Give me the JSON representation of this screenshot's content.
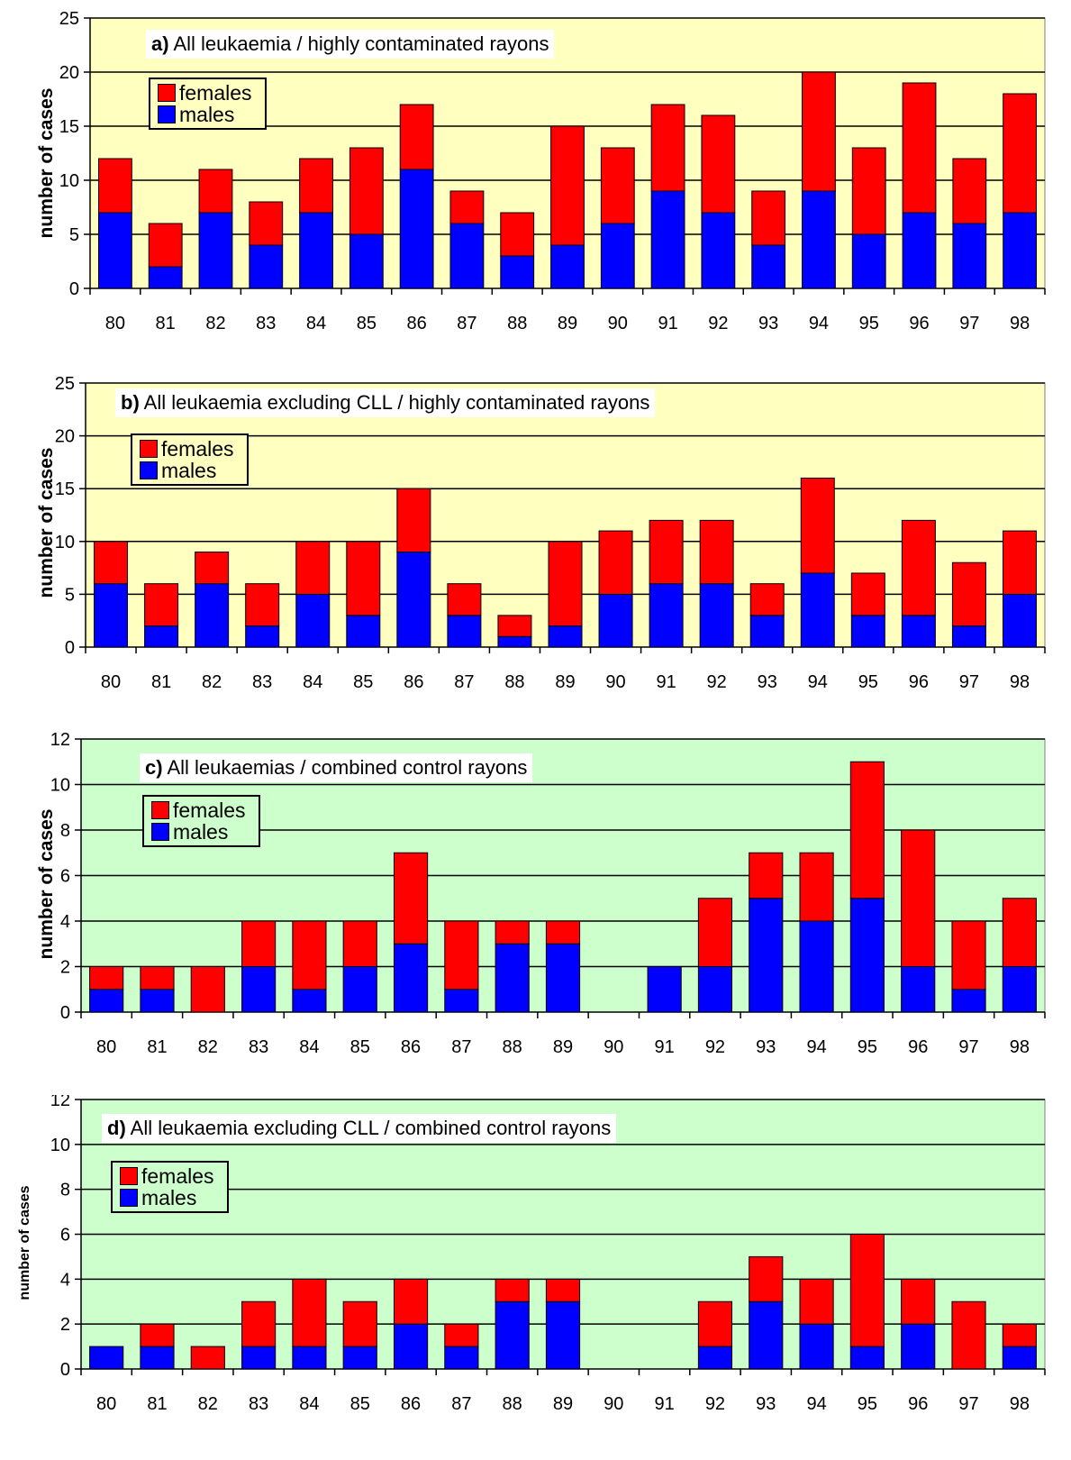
{
  "chart_data": [
    {
      "type": "bar",
      "stacked": true,
      "panel_tag": "a)",
      "title": "All leukaemia / highly contaminated rayons",
      "ylabel": "number of cases",
      "ylim": [
        0,
        25
      ],
      "yticks": [
        0,
        5,
        10,
        15,
        20,
        25
      ],
      "background": "#ffffc0",
      "categories": [
        "80",
        "81",
        "82",
        "83",
        "84",
        "85",
        "86",
        "87",
        "88",
        "89",
        "90",
        "91",
        "92",
        "93",
        "94",
        "95",
        "96",
        "97",
        "98"
      ],
      "series": [
        {
          "name": "males",
          "color": "#0000ff",
          "values": [
            7,
            2,
            7,
            4,
            7,
            5,
            11,
            6,
            3,
            4,
            6,
            9,
            7,
            4,
            9,
            5,
            7,
            6,
            7
          ]
        },
        {
          "name": "females",
          "color": "#ff0000",
          "values": [
            5,
            4,
            4,
            4,
            5,
            8,
            6,
            3,
            4,
            11,
            7,
            8,
            9,
            5,
            11,
            8,
            12,
            6,
            11
          ]
        }
      ],
      "legend": [
        "females",
        "males"
      ]
    },
    {
      "type": "bar",
      "stacked": true,
      "panel_tag": "b)",
      "title": "All leukaemia excluding CLL / highly contaminated rayons",
      "ylabel": "number of cases",
      "ylim": [
        0,
        25
      ],
      "yticks": [
        0,
        5,
        10,
        15,
        20,
        25
      ],
      "background": "#ffffc0",
      "categories": [
        "80",
        "81",
        "82",
        "83",
        "84",
        "85",
        "86",
        "87",
        "88",
        "89",
        "90",
        "91",
        "92",
        "93",
        "94",
        "95",
        "96",
        "97",
        "98"
      ],
      "series": [
        {
          "name": "males",
          "color": "#0000ff",
          "values": [
            6,
            2,
            6,
            2,
            5,
            3,
            9,
            3,
            1,
            2,
            5,
            6,
            6,
            3,
            7,
            3,
            3,
            2,
            5
          ]
        },
        {
          "name": "females",
          "color": "#ff0000",
          "values": [
            4,
            4,
            3,
            4,
            5,
            7,
            6,
            3,
            2,
            8,
            6,
            6,
            6,
            3,
            9,
            4,
            9,
            6,
            6
          ]
        }
      ],
      "legend": [
        "females",
        "males"
      ]
    },
    {
      "type": "bar",
      "stacked": true,
      "panel_tag": "c)",
      "title": "All leukaemias / combined control rayons",
      "ylabel": "number of cases",
      "ylim": [
        0,
        12
      ],
      "yticks": [
        0,
        2,
        4,
        6,
        8,
        10,
        12
      ],
      "background": "#ccffcc",
      "categories": [
        "80",
        "81",
        "82",
        "83",
        "84",
        "85",
        "86",
        "87",
        "88",
        "89",
        "90",
        "91",
        "92",
        "93",
        "94",
        "95",
        "96",
        "97",
        "98"
      ],
      "series": [
        {
          "name": "males",
          "color": "#0000ff",
          "values": [
            1,
            1,
            0,
            2,
            1,
            2,
            3,
            1,
            3,
            3,
            0,
            2,
            2,
            5,
            4,
            5,
            2,
            1,
            2
          ]
        },
        {
          "name": "females",
          "color": "#ff0000",
          "values": [
            1,
            1,
            2,
            2,
            3,
            2,
            4,
            3,
            1,
            1,
            0,
            0,
            3,
            2,
            3,
            6,
            6,
            3,
            3
          ]
        }
      ],
      "legend": [
        "females",
        "males"
      ]
    },
    {
      "type": "bar",
      "stacked": true,
      "panel_tag": "d)",
      "title": "All leukaemia excluding CLL / combined control rayons",
      "ylabel": "number of cases",
      "ylim": [
        0,
        12
      ],
      "yticks": [
        0,
        2,
        4,
        6,
        8,
        10,
        12
      ],
      "background": "#ccffcc",
      "categories": [
        "80",
        "81",
        "82",
        "83",
        "84",
        "85",
        "86",
        "87",
        "88",
        "89",
        "90",
        "91",
        "92",
        "93",
        "94",
        "95",
        "96",
        "97",
        "98"
      ],
      "series": [
        {
          "name": "males",
          "color": "#0000ff",
          "values": [
            1,
            1,
            0,
            1,
            1,
            1,
            2,
            1,
            3,
            3,
            0,
            0,
            1,
            3,
            2,
            1,
            2,
            0,
            1
          ]
        },
        {
          "name": "females",
          "color": "#ff0000",
          "values": [
            0,
            1,
            1,
            2,
            3,
            2,
            2,
            1,
            1,
            1,
            0,
            0,
            2,
            2,
            2,
            5,
            2,
            3,
            1
          ]
        }
      ],
      "legend": [
        "females",
        "males"
      ]
    }
  ]
}
